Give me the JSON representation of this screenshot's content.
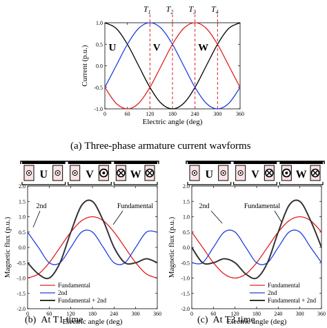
{
  "panel_a": {
    "caption_tag": "(a)",
    "caption_text": "Three-phase armature current wavforms",
    "markers": [
      "T1",
      "T2",
      "T3",
      "T4"
    ],
    "phase_labels": [
      "U",
      "V",
      "W"
    ]
  },
  "panel_b": {
    "caption_tag": "(b)",
    "caption_text": "At T1 time",
    "callouts": [
      "2nd",
      "Fundamental"
    ]
  },
  "panel_c": {
    "caption_tag": "(c)",
    "caption_text": "At T3 time",
    "callouts": [
      "2nd",
      "Fundamental"
    ]
  },
  "chart_data": [
    {
      "type": "line",
      "xlabel": "Electric angle (deg)",
      "ylabel": "Current (p.u.)",
      "xlim": [
        0,
        360
      ],
      "ylim": [
        -1.0,
        1.0
      ],
      "xticks": [
        0,
        60,
        120,
        180,
        240,
        300,
        360
      ],
      "yticks": [
        -1.0,
        -0.5,
        0.0,
        0.5,
        1.0
      ],
      "x": [
        0,
        30,
        60,
        90,
        120,
        150,
        180,
        210,
        240,
        270,
        300,
        330,
        360
      ],
      "series": [
        {
          "name": "U",
          "color": "#000000",
          "values": [
            1.0,
            0.87,
            0.5,
            0.0,
            -0.5,
            -0.87,
            -1.0,
            -0.87,
            -0.5,
            0.0,
            0.5,
            0.87,
            1.0
          ]
        },
        {
          "name": "V",
          "color": "#1f3fe0",
          "values": [
            -0.5,
            0.0,
            0.5,
            0.87,
            1.0,
            0.87,
            0.5,
            0.0,
            -0.5,
            -0.87,
            -1.0,
            -0.87,
            -0.5
          ]
        },
        {
          "name": "W",
          "color": "#e02020",
          "values": [
            -0.5,
            -0.87,
            -1.0,
            -0.87,
            -0.5,
            0.0,
            0.5,
            0.87,
            1.0,
            0.87,
            0.5,
            0.0,
            -0.5
          ]
        }
      ],
      "vlines": [
        120,
        180,
        240,
        300
      ]
    },
    {
      "type": "line",
      "xlabel": "Electric angle (deg)",
      "ylabel": "Magnetic flux (p.u.)",
      "xlim": [
        0,
        360
      ],
      "ylim": [
        -2.0,
        2.0
      ],
      "xticks": [
        0,
        60,
        120,
        180,
        240,
        300,
        360
      ],
      "yticks": [
        -2.0,
        -1.5,
        -1.0,
        -0.5,
        0.0,
        0.5,
        1.0,
        1.5,
        2.0
      ],
      "x": [
        0,
        30,
        60,
        90,
        120,
        150,
        180,
        210,
        240,
        270,
        300,
        330,
        360
      ],
      "series": [
        {
          "name": "Fundamental",
          "color": "#e02020",
          "values": [
            -1.0,
            -0.87,
            -0.5,
            0.0,
            0.5,
            0.87,
            1.0,
            0.87,
            0.5,
            0.0,
            -0.5,
            -0.87,
            -1.0
          ]
        },
        {
          "name": "2nd",
          "color": "#1f3fe0",
          "values": [
            0.5,
            0.0,
            -0.5,
            -0.5,
            0.0,
            0.5,
            0.5,
            0.0,
            -0.5,
            -0.5,
            0.0,
            0.5,
            0.5
          ]
        },
        {
          "name": "Fundamental + 2nd",
          "color": "#333333",
          "values": [
            -0.5,
            -0.87,
            -1.0,
            -0.5,
            0.5,
            1.37,
            1.5,
            0.87,
            0.0,
            -0.5,
            -0.5,
            -0.37,
            -0.5
          ]
        }
      ],
      "legend": "bottom-left"
    },
    {
      "type": "line",
      "xlabel": "Electric angle (deg)",
      "ylabel": "Magnetic flux (p.u.)",
      "xlim": [
        0,
        360
      ],
      "ylim": [
        -2.0,
        2.0
      ],
      "xticks": [
        0,
        60,
        120,
        180,
        240,
        300,
        360
      ],
      "yticks": [
        -2.0,
        -1.5,
        -1.0,
        -0.5,
        0.0,
        0.5,
        1.0,
        1.5,
        2.0
      ],
      "x": [
        0,
        30,
        60,
        90,
        120,
        150,
        180,
        210,
        240,
        270,
        300,
        330,
        360
      ],
      "series": [
        {
          "name": "Fundamental",
          "color": "#e02020",
          "values": [
            0.5,
            0.0,
            -0.5,
            -0.87,
            -1.0,
            -0.87,
            -0.5,
            0.0,
            0.5,
            0.87,
            1.0,
            0.87,
            0.5
          ]
        },
        {
          "name": "2nd",
          "color": "#1f3fe0",
          "values": [
            -0.5,
            -0.5,
            0.0,
            0.5,
            0.5,
            0.0,
            -0.5,
            -0.5,
            0.0,
            0.5,
            0.5,
            0.0,
            -0.5
          ]
        },
        {
          "name": "Fundamental + 2nd",
          "color": "#333333",
          "values": [
            0.0,
            -0.5,
            -0.5,
            -0.37,
            -0.5,
            -0.87,
            -1.0,
            -0.5,
            0.5,
            1.37,
            1.5,
            0.87,
            0.0
          ]
        }
      ],
      "legend": "bottom-right"
    }
  ]
}
